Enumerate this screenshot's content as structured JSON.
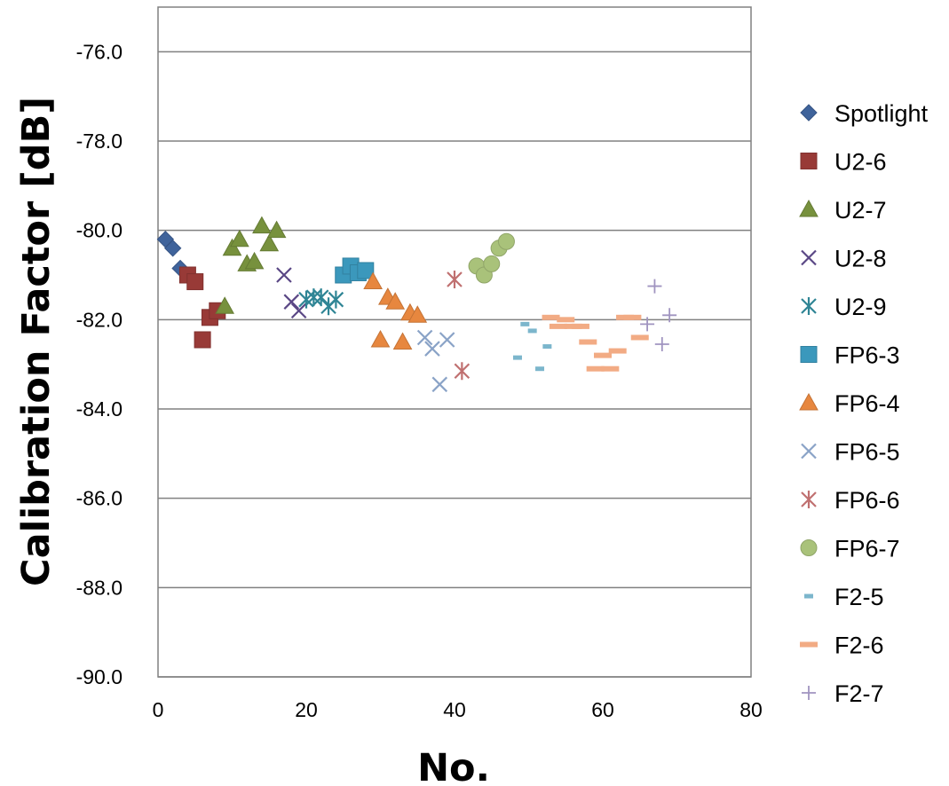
{
  "chart_data": {
    "type": "scatter",
    "title": "",
    "xlabel": "No.",
    "ylabel": "Calibration Factor [dB]",
    "xlim": [
      0,
      80
    ],
    "ylim": [
      -90,
      -75
    ],
    "x_ticks": [
      "0",
      "20",
      "40",
      "60",
      "80"
    ],
    "y_ticks": [
      "-76.0",
      "-78.0",
      "-80.0",
      "-82.0",
      "-84.0",
      "-86.0",
      "-88.0",
      "-90.0"
    ],
    "grid": "horizontal",
    "legend_position": "right",
    "series": [
      {
        "name": "Spotlight",
        "marker": "diamond",
        "color": "#3f639b",
        "points": [
          [
            1,
            -80.2
          ],
          [
            2,
            -80.4
          ],
          [
            3,
            -80.85
          ]
        ]
      },
      {
        "name": "U2-6",
        "marker": "square",
        "color": "#983a37",
        "points": [
          [
            4,
            -81.0
          ],
          [
            5,
            -81.15
          ],
          [
            6,
            -82.45
          ],
          [
            7,
            -81.95
          ],
          [
            8,
            -81.8
          ]
        ]
      },
      {
        "name": "U2-7",
        "marker": "triangle",
        "color": "#77913d",
        "points": [
          [
            9,
            -81.7
          ],
          [
            10,
            -80.4
          ],
          [
            11,
            -80.2
          ],
          [
            12,
            -80.75
          ],
          [
            13,
            -80.7
          ],
          [
            14,
            -79.9
          ],
          [
            15,
            -80.3
          ],
          [
            16,
            -80.0
          ]
        ]
      },
      {
        "name": "U2-8",
        "marker": "x",
        "color": "#5a4785",
        "points": [
          [
            17,
            -81.0
          ],
          [
            18,
            -81.6
          ],
          [
            19,
            -81.8
          ]
        ]
      },
      {
        "name": "U2-9",
        "marker": "star",
        "color": "#2f8595",
        "points": [
          [
            20,
            -81.55
          ],
          [
            21,
            -81.5
          ],
          [
            22,
            -81.5
          ],
          [
            23,
            -81.7
          ],
          [
            24,
            -81.55
          ]
        ]
      },
      {
        "name": "FP6-3",
        "marker": "square",
        "color": "#3b98bc",
        "points": [
          [
            25,
            -81.0
          ],
          [
            26,
            -80.8
          ],
          [
            27,
            -80.95
          ],
          [
            28,
            -80.9
          ]
        ]
      },
      {
        "name": "FP6-4",
        "marker": "triangle",
        "color": "#e7873f",
        "points": [
          [
            29,
            -81.15
          ],
          [
            30,
            -82.45
          ],
          [
            31,
            -81.5
          ],
          [
            32,
            -81.6
          ],
          [
            33,
            -82.5
          ],
          [
            34,
            -81.85
          ],
          [
            35,
            -81.9
          ]
        ]
      },
      {
        "name": "FP6-5",
        "marker": "x",
        "color": "#8aa3c7",
        "points": [
          [
            36,
            -82.4
          ],
          [
            37,
            -82.65
          ],
          [
            38,
            -83.45
          ],
          [
            39,
            -82.45
          ]
        ]
      },
      {
        "name": "FP6-6",
        "marker": "star",
        "color": "#c07070",
        "points": [
          [
            40,
            -81.1
          ],
          [
            41,
            -83.15
          ]
        ]
      },
      {
        "name": "FP6-7",
        "marker": "circle",
        "color": "#a9c27a",
        "points": [
          [
            43,
            -80.8
          ],
          [
            44,
            -81.0
          ],
          [
            45,
            -80.75
          ],
          [
            46,
            -80.4
          ],
          [
            47,
            -80.25
          ]
        ]
      },
      {
        "name": "F2-5",
        "marker": "dash-small",
        "color": "#7cb6cc",
        "points": [
          [
            48.5,
            -82.85
          ],
          [
            49.5,
            -82.1
          ],
          [
            50.5,
            -82.25
          ],
          [
            51.5,
            -83.1
          ],
          [
            52.5,
            -82.6
          ]
        ]
      },
      {
        "name": "F2-6",
        "marker": "dash",
        "color": "#f2ab84",
        "points": [
          [
            53,
            -81.95
          ],
          [
            54,
            -82.15
          ],
          [
            55,
            -82.0
          ],
          [
            56,
            -82.15
          ],
          [
            57,
            -82.15
          ],
          [
            58,
            -82.5
          ],
          [
            59,
            -83.1
          ],
          [
            60,
            -82.8
          ],
          [
            61,
            -83.1
          ],
          [
            62,
            -82.7
          ],
          [
            63,
            -81.95
          ],
          [
            64,
            -81.95
          ],
          [
            65,
            -82.4
          ]
        ]
      },
      {
        "name": "F2-7",
        "marker": "plus",
        "color": "#a094c0",
        "points": [
          [
            66,
            -82.1
          ],
          [
            67,
            -81.25
          ],
          [
            68,
            -82.55
          ],
          [
            69,
            -81.9
          ]
        ]
      }
    ]
  }
}
